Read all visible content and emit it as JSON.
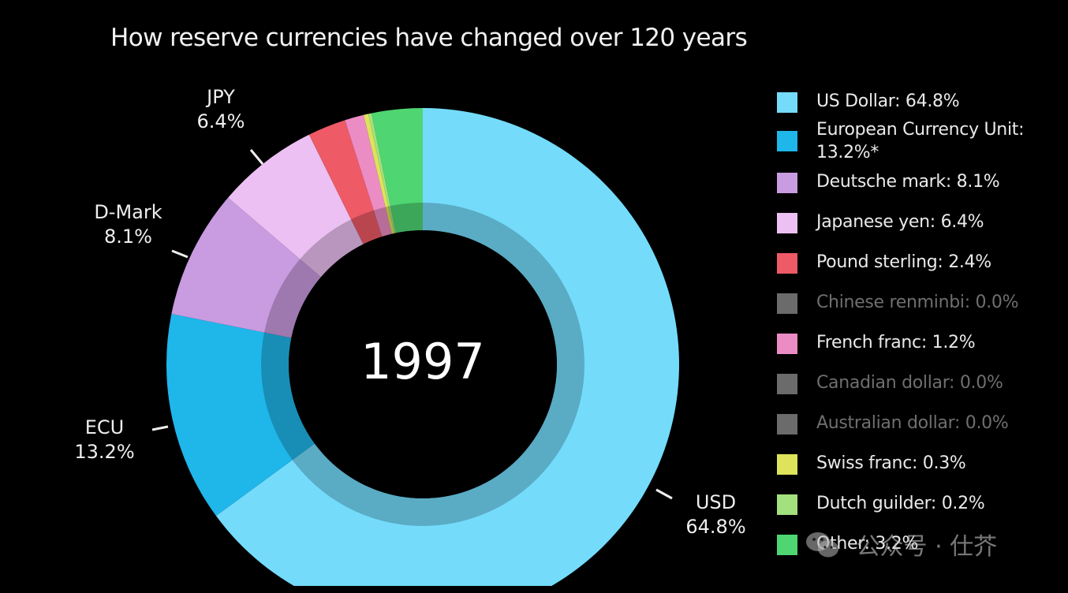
{
  "title": "How reserve currencies have changed over 120 years",
  "year": "1997",
  "slice_labels": [
    {
      "name": "USD",
      "value": "64.8%"
    },
    {
      "name": "ECU",
      "value": "13.2%"
    },
    {
      "name": "D-Mark",
      "value": "8.1%"
    },
    {
      "name": "JPY",
      "value": "6.4%"
    }
  ],
  "legend": [
    {
      "label": "US Dollar: 64.8%",
      "color": "#74dbfb",
      "muted": false
    },
    {
      "label": "European Currency Unit: 13.2%*",
      "color": "#1fb6ea",
      "muted": false
    },
    {
      "label": "Deutsche mark: 8.1%",
      "color": "#c99be0",
      "muted": false
    },
    {
      "label": "Japanese yen: 6.4%",
      "color": "#ecc0f3",
      "muted": false
    },
    {
      "label": "Pound sterling: 2.4%",
      "color": "#ee5a65",
      "muted": false
    },
    {
      "label": "Chinese renminbi: 0.0%",
      "color": "#6b6b6b",
      "muted": true
    },
    {
      "label": "French franc: 1.2%",
      "color": "#ec8cc4",
      "muted": false
    },
    {
      "label": "Canadian dollar: 0.0%",
      "color": "#6b6b6b",
      "muted": true
    },
    {
      "label": "Australian dollar: 0.0%",
      "color": "#6b6b6b",
      "muted": true
    },
    {
      "label": "Swiss franc: 0.3%",
      "color": "#dde35a",
      "muted": false
    },
    {
      "label": "Dutch guilder: 0.2%",
      "color": "#a3e07e",
      "muted": false
    },
    {
      "label": "Other: 3.2%",
      "color": "#4fd672",
      "muted": false
    }
  ],
  "watermark": "公众号 · 仕芥",
  "chart_data": {
    "type": "pie",
    "subtype": "donut",
    "title": "How reserve currencies have changed over 120 years",
    "center_label": "1997",
    "categories": [
      "US Dollar",
      "European Currency Unit",
      "Deutsche mark",
      "Japanese yen",
      "Pound sterling",
      "Chinese renminbi",
      "French franc",
      "Canadian dollar",
      "Australian dollar",
      "Swiss franc",
      "Dutch guilder",
      "Other"
    ],
    "values": [
      64.8,
      13.2,
      8.1,
      6.4,
      2.4,
      0.0,
      1.2,
      0.0,
      0.0,
      0.3,
      0.2,
      3.2
    ],
    "colors": [
      "#74dbfb",
      "#1fb6ea",
      "#c99be0",
      "#ecc0f3",
      "#ee5a65",
      "#6b6b6b",
      "#ec8cc4",
      "#6b6b6b",
      "#6b6b6b",
      "#dde35a",
      "#a3e07e",
      "#4fd672"
    ],
    "annotations": [
      "ECU value marked with *",
      "USD 64.8%",
      "ECU 13.2%",
      "D-Mark 8.1%",
      "JPY 6.4%"
    ],
    "legend_position": "right",
    "start_angle": "12 o'clock, clockwise"
  }
}
